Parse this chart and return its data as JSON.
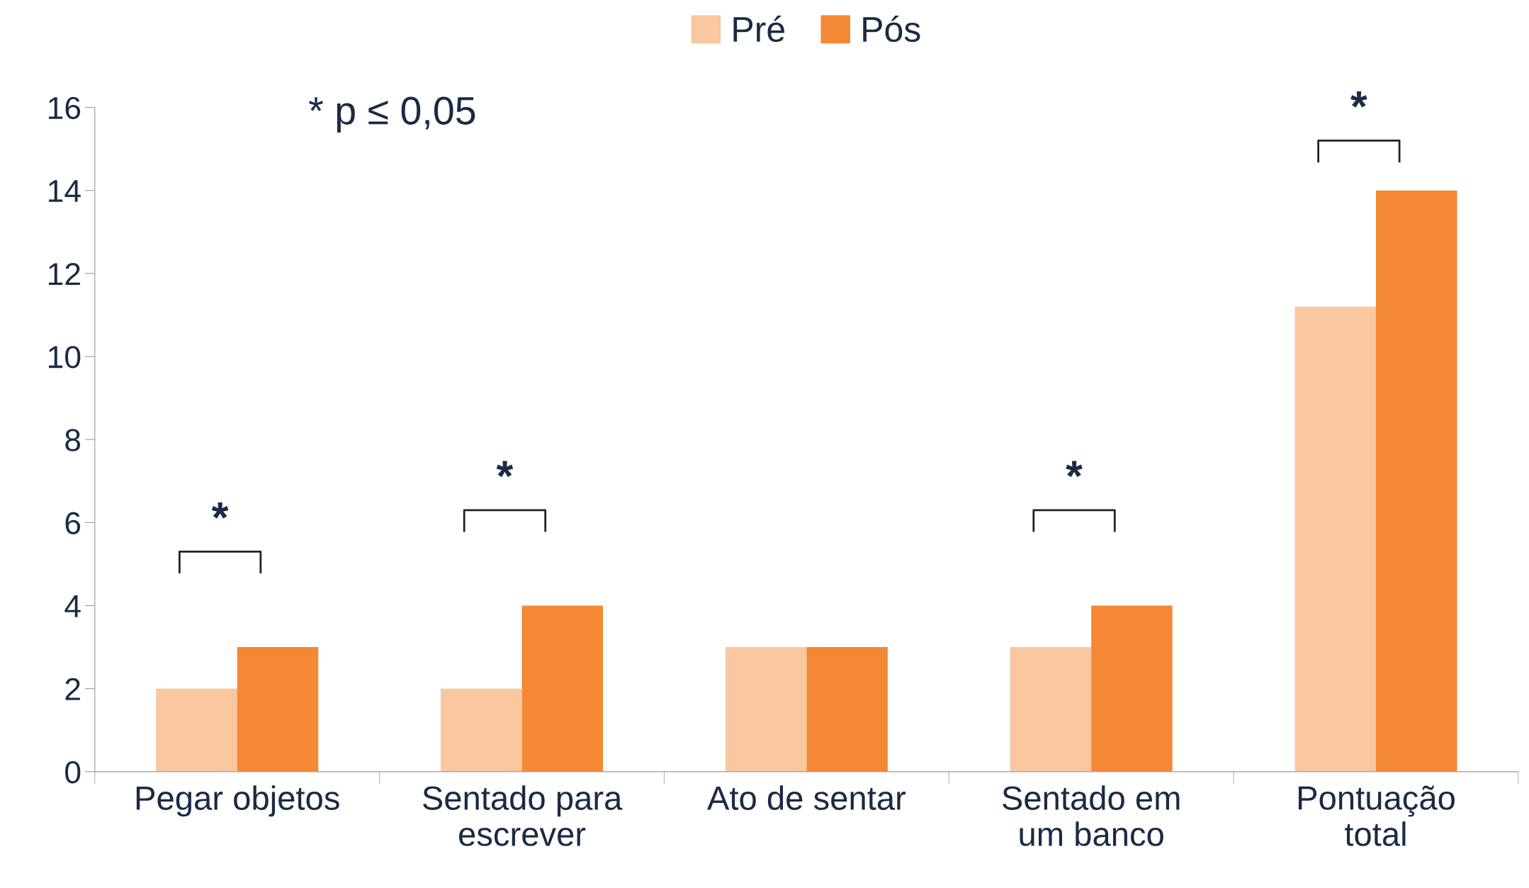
{
  "chart_data": {
    "type": "bar",
    "categories": [
      "Pegar objetos",
      "Sentado para\nescrever",
      "Ato de sentar",
      "Sentado em\num banco",
      "Pontuação\ntotal"
    ],
    "series": [
      {
        "name": "Pré",
        "color": "#f9c7a0",
        "values": [
          2,
          2,
          3,
          3,
          11.2
        ]
      },
      {
        "name": "Pós",
        "color": "#f48835",
        "values": [
          3,
          4,
          3,
          4,
          14
        ]
      }
    ],
    "ylim": [
      0,
      16
    ],
    "yticks": [
      0,
      2,
      4,
      6,
      8,
      10,
      12,
      14,
      16
    ],
    "grid": false,
    "legend": "top",
    "annotations": [
      "* p ≤ 0,05",
      "*",
      "*",
      "*",
      "*"
    ]
  }
}
